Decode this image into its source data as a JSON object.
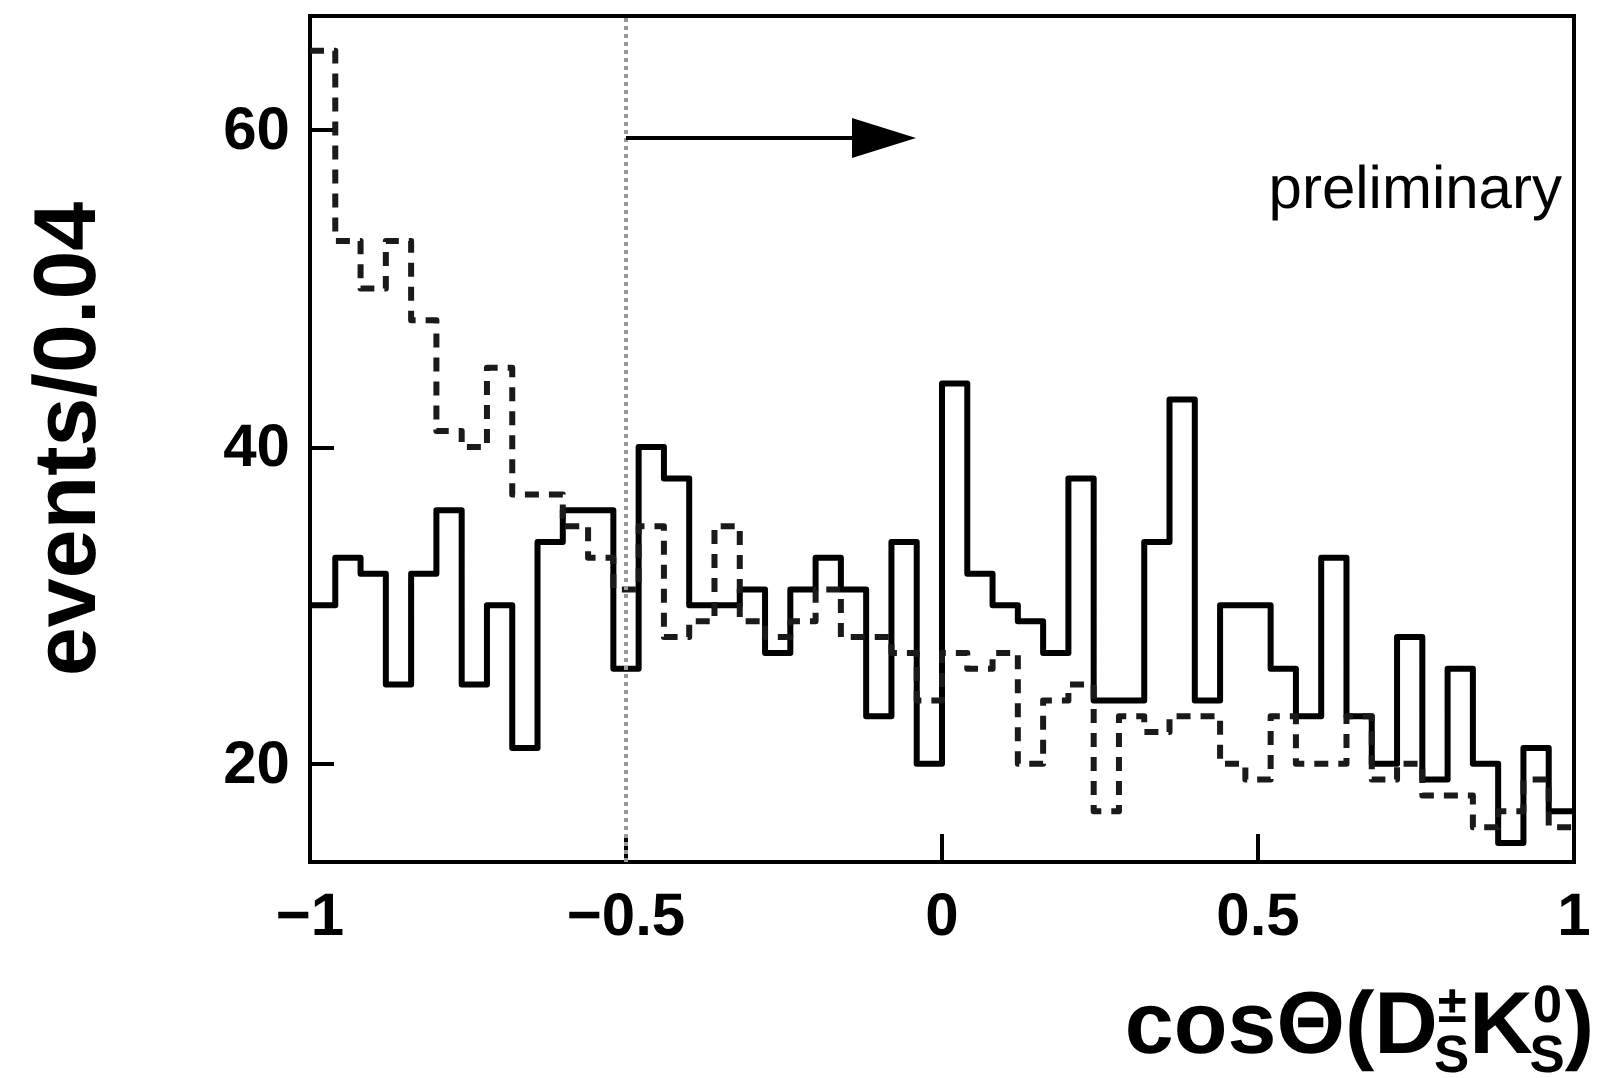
{
  "chart_data": {
    "type": "histogram",
    "xlabel": "cosΘ(D$^{±}$$_{S}$K$^{0}$$_{S}$)",
    "ylabel": "events/0.04",
    "annotations": [
      "preliminary"
    ],
    "bins": [
      -1,
      -0.96,
      -0.92,
      -0.88,
      -0.84,
      -0.8,
      -0.76,
      -0.72,
      -0.68,
      -0.64,
      -0.6,
      -0.56,
      -0.52,
      -0.48,
      -0.44,
      -0.4,
      -0.36,
      -0.32,
      -0.28,
      -0.24,
      -0.2,
      -0.16,
      -0.12,
      -0.08,
      -0.04,
      0,
      0.04,
      0.08,
      0.12,
      0.16,
      0.2,
      0.24,
      0.28,
      0.32,
      0.36,
      0.4,
      0.44,
      0.48,
      0.52,
      0.56,
      0.6,
      0.64,
      0.68,
      0.72,
      0.76,
      0.8,
      0.84,
      0.88,
      0.92,
      0.96,
      1
    ],
    "series": [
      {
        "color": "#000000",
        "line_style": "solid",
        "values": [
          30,
          33,
          32,
          25,
          32,
          36,
          25,
          30,
          21,
          34,
          36,
          36,
          26,
          40,
          38,
          30,
          30,
          31,
          27,
          31,
          33,
          31,
          23,
          34,
          20,
          44,
          32,
          30,
          29,
          27,
          38,
          24,
          24,
          34,
          43,
          24,
          30,
          30,
          26,
          23,
          33,
          23,
          20,
          28,
          19,
          26,
          20,
          15,
          21,
          17
        ]
      },
      {
        "color": "#1a1a1a",
        "line_style": "dashed",
        "values": [
          65,
          53,
          50,
          53,
          48,
          41,
          40,
          45,
          37,
          37,
          35,
          33,
          31,
          35,
          28,
          29,
          35,
          29,
          28,
          29,
          31,
          28,
          28,
          27,
          24,
          27,
          26,
          27,
          20,
          24,
          25,
          17,
          23,
          22,
          23,
          23,
          20,
          19,
          23,
          20,
          20,
          23,
          19,
          20,
          18,
          18,
          16,
          17,
          19,
          16
        ]
      }
    ],
    "xlim": [
      -1,
      1
    ],
    "xticks": [
      {
        "value": -1,
        "label": "−1"
      },
      {
        "value": -0.5,
        "label": "−0.5"
      },
      0,
      0.5,
      1
    ],
    "ylim": [
      13.8,
      67.2
    ],
    "yticks": [
      20,
      40,
      60
    ],
    "ref_lines": [
      {
        "axis": "x",
        "value": -0.5,
        "color": "#999999",
        "line_style": "dotted"
      }
    ]
  }
}
